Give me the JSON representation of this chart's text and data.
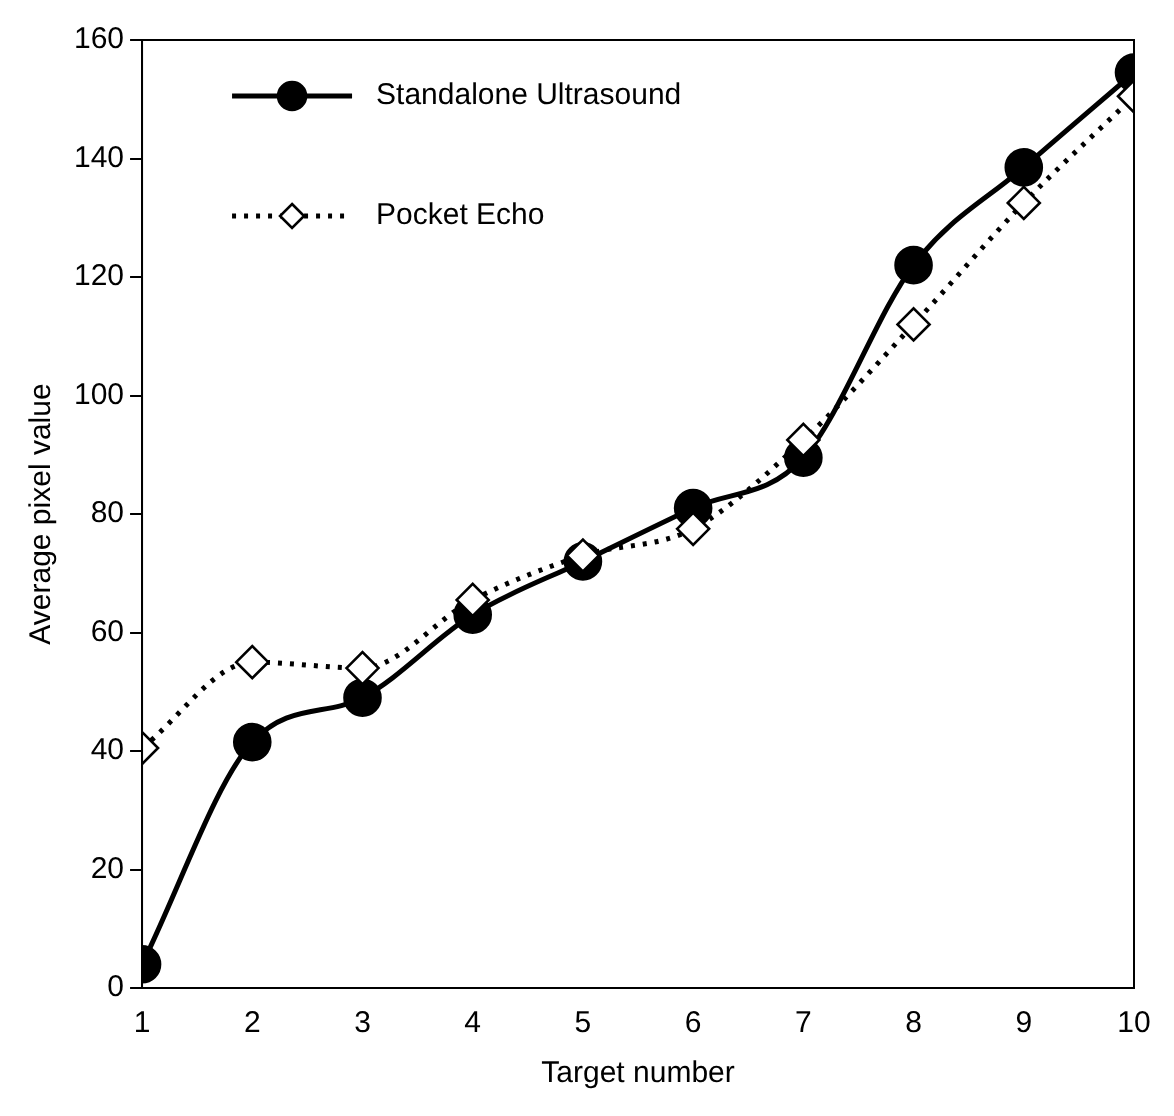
{
  "chart_data": {
    "type": "line",
    "xlabel": "Target number",
    "ylabel": "Average pixel value",
    "x": [
      1,
      2,
      3,
      4,
      5,
      6,
      7,
      8,
      9,
      10
    ],
    "series": [
      {
        "name": "Standalone Ultrasound",
        "color": "#000000",
        "marker": "circle",
        "line_style": "solid",
        "values": [
          4,
          41.5,
          49,
          63,
          72,
          81,
          89.5,
          122,
          138.5,
          154.5
        ]
      },
      {
        "name": "Pocket Echo",
        "color": "#000000",
        "marker": "diamond",
        "line_style": "dotted",
        "values": [
          40.5,
          55,
          54,
          65.5,
          73,
          77.5,
          92.5,
          112,
          132.5,
          150.5
        ]
      }
    ],
    "xlim": [
      1,
      10
    ],
    "xticks": [
      1,
      2,
      3,
      4,
      5,
      6,
      7,
      8,
      9,
      10
    ],
    "ylim": [
      0,
      160
    ],
    "yticks": [
      0,
      20,
      40,
      60,
      80,
      100,
      120,
      140,
      160
    ],
    "grid": false,
    "legend": "top left"
  }
}
